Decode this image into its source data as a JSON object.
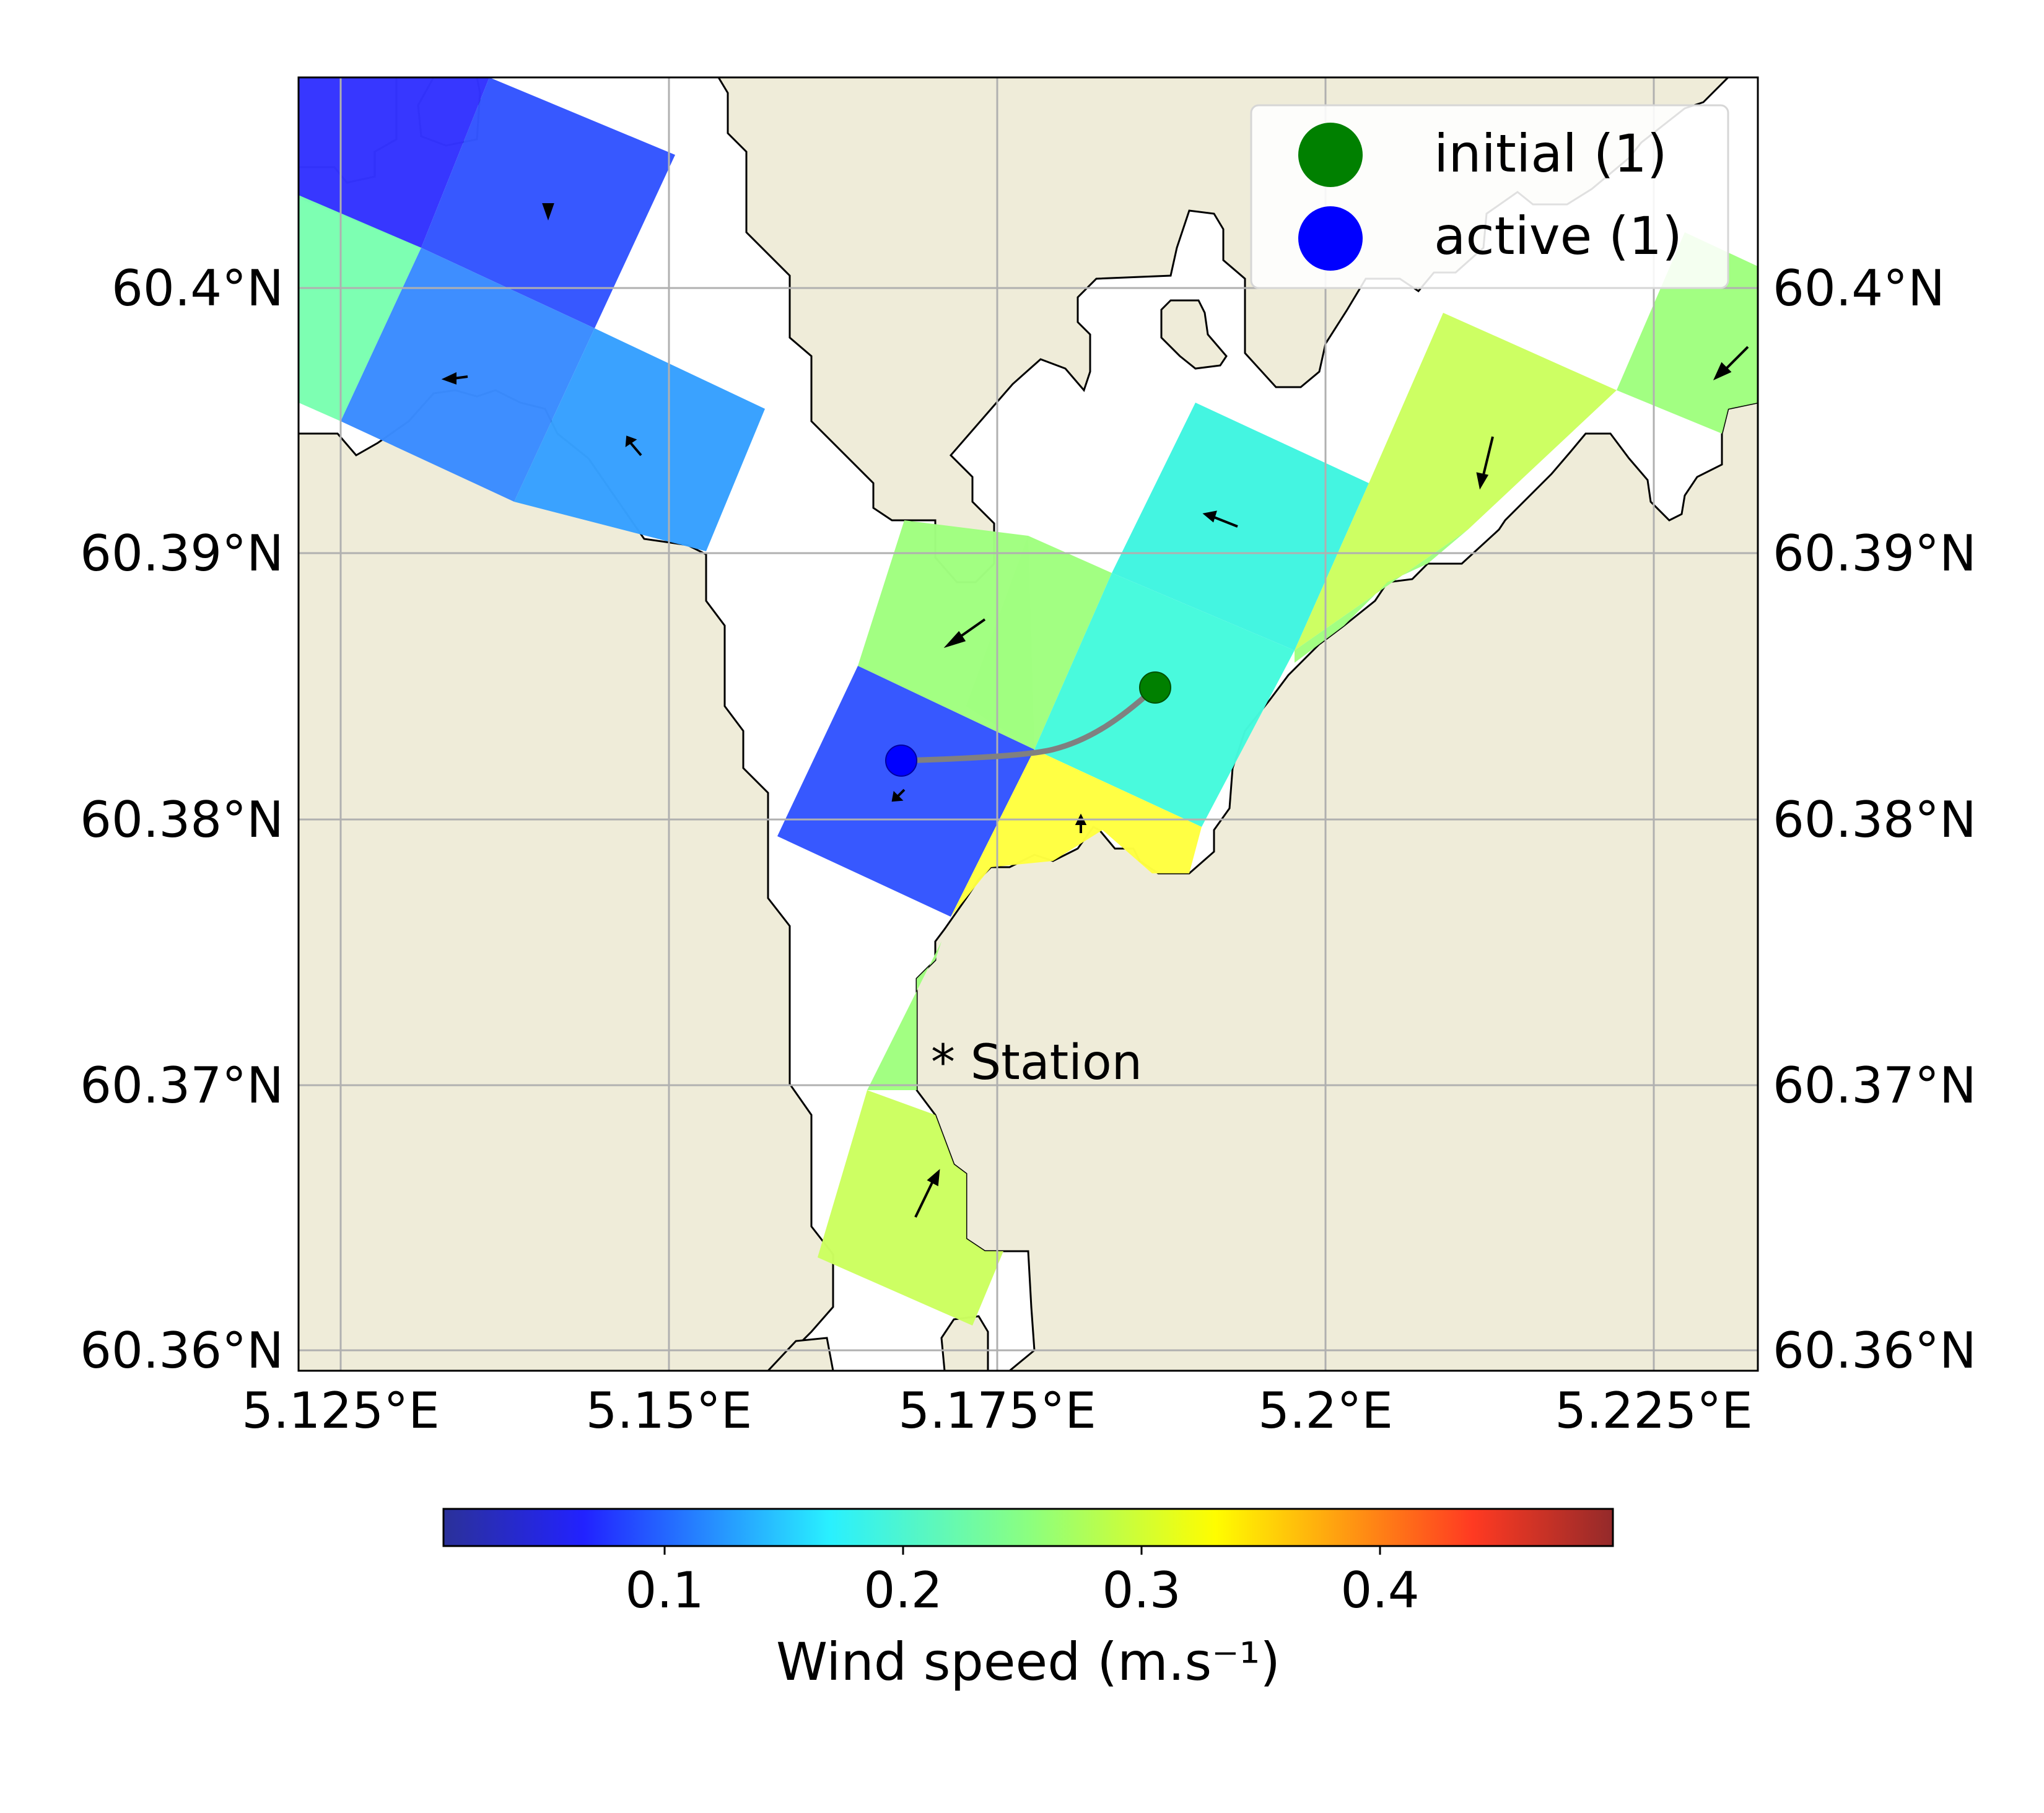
{
  "map": {
    "lon_ticks": [
      "5.125°E",
      "5.15°E",
      "5.175°E",
      "5.2°E",
      "5.225°E"
    ],
    "lat_ticks": [
      "60.4°N",
      "60.39°N",
      "60.38°N",
      "60.37°N",
      "60.36°N"
    ],
    "lon_range": [
      5.1217,
      5.2329
    ],
    "lat_range": [
      60.3591,
      60.4081
    ],
    "land_color": "#efecd9",
    "water_color": "#ffffff",
    "grid": true,
    "station": {
      "label": "* Station",
      "lon": 5.1715,
      "lat": 60.3706
    }
  },
  "legend": {
    "placement": "top-right",
    "items": [
      {
        "label": "initial (1)",
        "color": "#008000"
      },
      {
        "label": "active (1)",
        "color": "#0000ff"
      }
    ]
  },
  "particles": {
    "initial": {
      "lon": 5.1866,
      "lat": 60.3849
    },
    "active": {
      "lon": 5.1676,
      "lat": 60.3822
    },
    "trajectory_color": "#808080"
  },
  "colorbar": {
    "label": "Wind speed (m.s⁻¹)",
    "ticks": [
      "0.1",
      "0.2",
      "0.3",
      "0.4"
    ],
    "tick_values": [
      0.1,
      0.2,
      0.3,
      0.4
    ],
    "range": [
      0.0,
      0.49
    ],
    "colormap": "jet"
  },
  "chart_data": {
    "type": "heatmap",
    "description_units": "wind speed in m.s-1 per rotated model grid cell",
    "cells": [
      {
        "lon": 5.137,
        "lat": 60.405,
        "speed": 0.08
      },
      {
        "lon": 5.143,
        "lat": 60.403,
        "speed": 0.09
      },
      {
        "lon": 5.127,
        "lat": 60.398,
        "speed": 0.22
      },
      {
        "lon": 5.14,
        "lat": 60.396,
        "speed": 0.13
      },
      {
        "lon": 5.147,
        "lat": 60.394,
        "speed": 0.14
      },
      {
        "lon": 5.173,
        "lat": 60.386,
        "speed": 0.24
      },
      {
        "lon": 5.169,
        "lat": 60.381,
        "speed": 0.09
      },
      {
        "lon": 5.188,
        "lat": 60.39,
        "speed": 0.19
      },
      {
        "lon": 5.184,
        "lat": 60.384,
        "speed": 0.2
      },
      {
        "lon": 5.18,
        "lat": 60.379,
        "speed": 0.31
      },
      {
        "lon": 5.206,
        "lat": 60.393,
        "speed": 0.26
      },
      {
        "lon": 5.228,
        "lat": 60.398,
        "speed": 0.24
      },
      {
        "lon": 5.168,
        "lat": 60.364,
        "speed": 0.27
      },
      {
        "lon": 5.17,
        "lat": 60.371,
        "speed": 0.25
      }
    ]
  }
}
